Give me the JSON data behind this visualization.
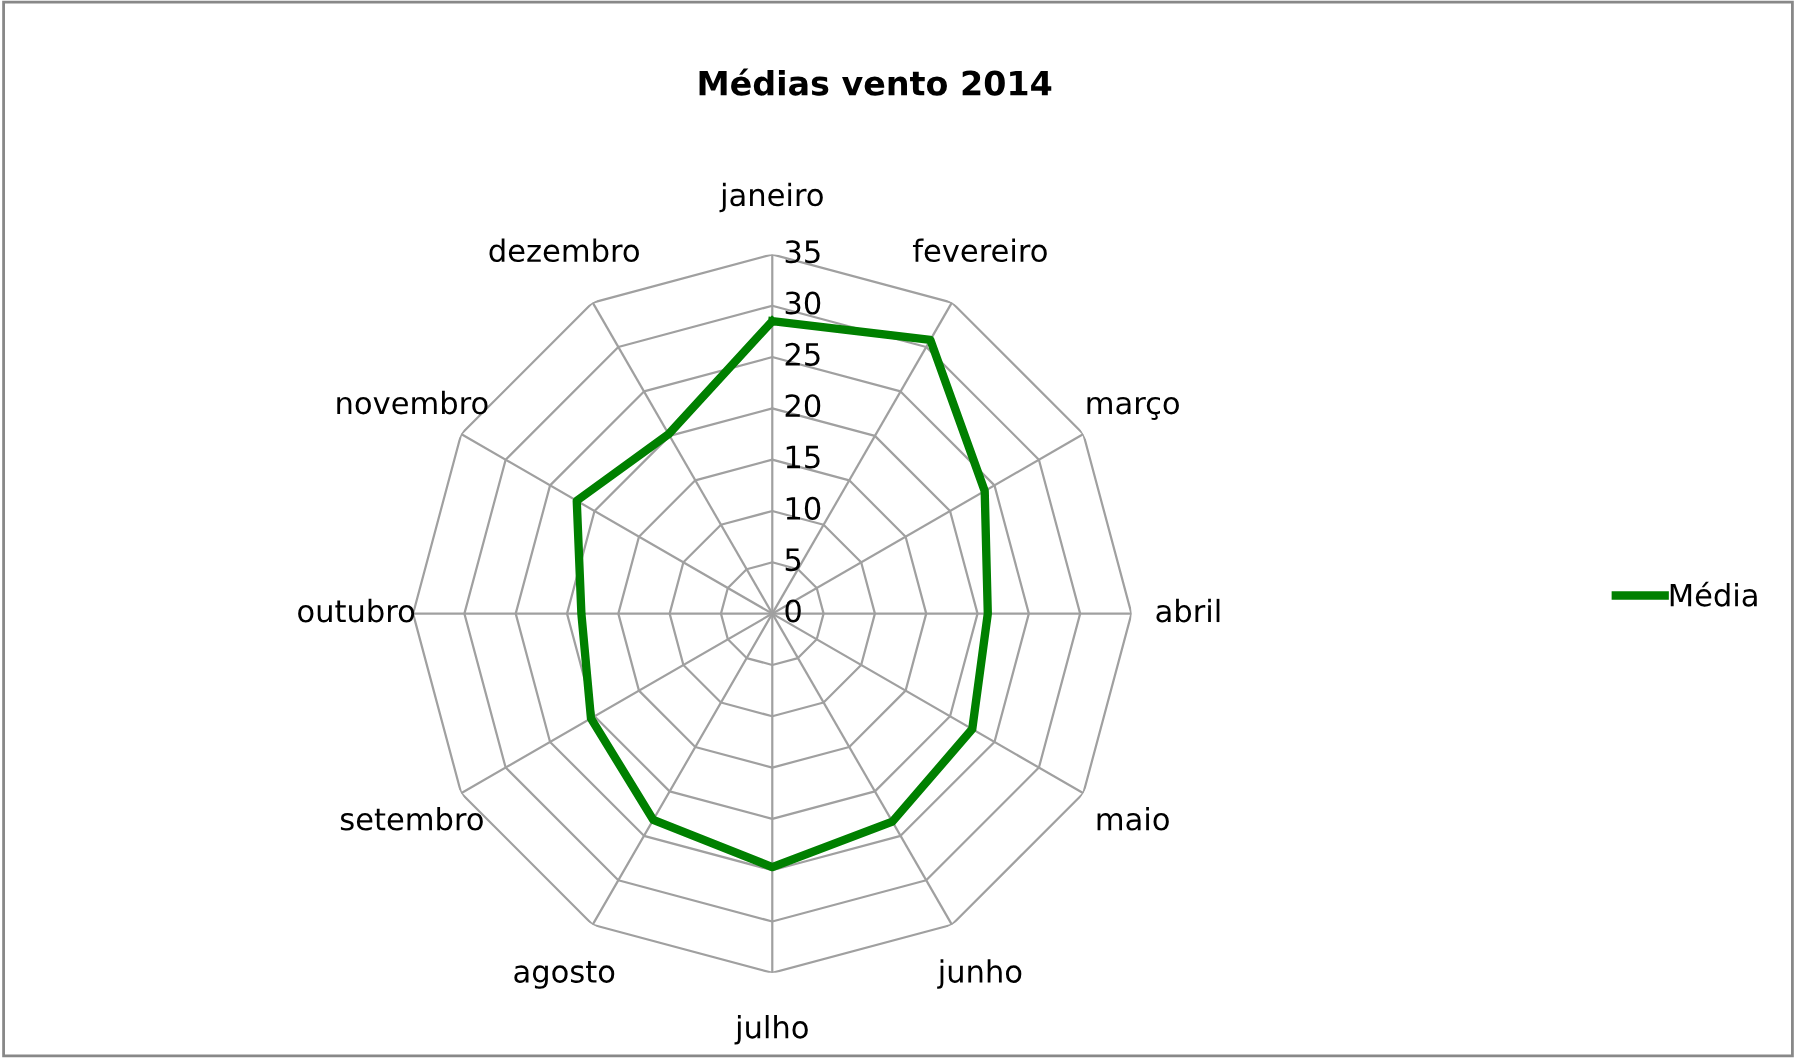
{
  "chart_data": {
    "type": "radar",
    "title": "Médias vento 2014",
    "categories": [
      "janeiro",
      "fevereiro",
      "março",
      "abril",
      "maio",
      "junho",
      "julho",
      "agosto",
      "setembro",
      "outubro",
      "novembro",
      "dezembro"
    ],
    "series": [
      {
        "name": "Média",
        "color": "#008000",
        "values": [
          28.5,
          30.8,
          23.9,
          21,
          22.5,
          23.4,
          24.7,
          23.2,
          20.4,
          18.6,
          22,
          20.2
        ]
      }
    ],
    "ylim": [
      0,
      35
    ],
    "yticks": [
      0,
      5,
      10,
      15,
      20,
      25,
      30,
      35
    ],
    "grid": true,
    "legend": "right",
    "marker": "none",
    "line_style": "solid"
  }
}
